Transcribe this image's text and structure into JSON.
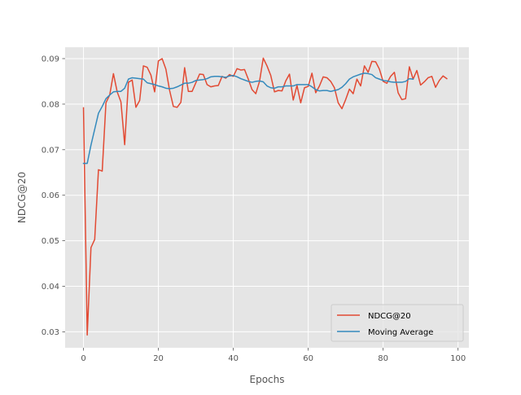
{
  "chart_data": {
    "type": "line",
    "title": "",
    "xlabel": "Epochs",
    "ylabel": "NDCG@20",
    "xlim": [
      -4.9,
      102.9
    ],
    "ylim": [
      0.0265,
      0.0925
    ],
    "xticks": [
      0,
      20,
      40,
      60,
      80,
      100
    ],
    "xtick_labels": [
      "0",
      "20",
      "40",
      "60",
      "80",
      "100"
    ],
    "yticks": [
      0.03,
      0.04,
      0.05,
      0.06,
      0.07,
      0.08,
      0.09
    ],
    "ytick_labels": [
      "0.03",
      "0.04",
      "0.05",
      "0.06",
      "0.07",
      "0.08",
      "0.09"
    ],
    "grid": true,
    "legend_position": "lower-right",
    "series": [
      {
        "name": "NDCG@20",
        "color": "#E24A33",
        "x": [
          0,
          1,
          2,
          3,
          4,
          5,
          6,
          7,
          8,
          9,
          10,
          11,
          12,
          13,
          14,
          15,
          16,
          17,
          18,
          19,
          20,
          21,
          22,
          23,
          24,
          25,
          26,
          27,
          28,
          29,
          30,
          31,
          32,
          33,
          34,
          35,
          36,
          37,
          38,
          39,
          40,
          41,
          42,
          43,
          44,
          45,
          46,
          47,
          48,
          49,
          50,
          51,
          52,
          53,
          54,
          55,
          56,
          57,
          58,
          59,
          60,
          61,
          62,
          63,
          64,
          65,
          66,
          67,
          68,
          69,
          70,
          71,
          72,
          73,
          74,
          75,
          76,
          77,
          78,
          79,
          80,
          81,
          82,
          83,
          84,
          85,
          86,
          87,
          88,
          89,
          90,
          91,
          92,
          93,
          94,
          95,
          96,
          97
        ],
        "values": [
          0.0792,
          0.0293,
          0.0485,
          0.0503,
          0.0656,
          0.0653,
          0.0803,
          0.082,
          0.0867,
          0.0827,
          0.0805,
          0.0711,
          0.0848,
          0.0853,
          0.0793,
          0.0808,
          0.0884,
          0.0881,
          0.0864,
          0.0827,
          0.0895,
          0.09,
          0.0877,
          0.083,
          0.0795,
          0.0793,
          0.0804,
          0.088,
          0.0828,
          0.0828,
          0.0847,
          0.0866,
          0.0865,
          0.0843,
          0.0838,
          0.084,
          0.0841,
          0.0861,
          0.0857,
          0.0865,
          0.0861,
          0.0878,
          0.0875,
          0.0876,
          0.0855,
          0.0832,
          0.0823,
          0.085,
          0.0901,
          0.0884,
          0.0863,
          0.0827,
          0.083,
          0.0829,
          0.0851,
          0.0866,
          0.0809,
          0.0841,
          0.0803,
          0.0836,
          0.0839,
          0.0868,
          0.0825,
          0.084,
          0.086,
          0.0858,
          0.085,
          0.0836,
          0.0803,
          0.079,
          0.081,
          0.0833,
          0.0823,
          0.0855,
          0.084,
          0.0884,
          0.087,
          0.0894,
          0.0893,
          0.0877,
          0.085,
          0.0846,
          0.0861,
          0.087,
          0.0825,
          0.081,
          0.0812,
          0.0882,
          0.0855,
          0.0874,
          0.0842,
          0.0849,
          0.0858,
          0.0861,
          0.0837,
          0.0852,
          0.0862,
          0.0856
        ]
      },
      {
        "name": "Moving Average",
        "color": "#348ABD",
        "x": [
          0,
          1,
          2,
          3,
          4,
          5,
          6,
          7,
          8,
          9,
          10,
          11,
          12,
          13,
          14,
          15,
          16,
          17,
          18,
          19,
          20,
          21,
          22,
          23,
          24,
          25,
          26,
          27,
          28,
          29,
          30,
          31,
          32,
          33,
          34,
          35,
          36,
          37,
          38,
          39,
          40,
          41,
          42,
          43,
          44,
          45,
          46,
          47,
          48,
          49,
          50,
          51,
          52,
          53,
          54,
          55,
          56,
          57,
          58,
          59,
          60,
          61,
          62,
          63,
          64,
          65,
          66,
          67,
          68,
          69,
          70,
          71,
          72,
          73,
          74,
          75,
          76,
          77,
          78,
          79,
          80,
          81,
          82,
          83,
          84,
          85,
          86,
          87,
          88
        ],
        "values": [
          0.067,
          0.067,
          0.071,
          0.0745,
          0.078,
          0.0795,
          0.0812,
          0.082,
          0.0827,
          0.0828,
          0.0828,
          0.0835,
          0.0855,
          0.0858,
          0.0857,
          0.0856,
          0.0855,
          0.0847,
          0.0845,
          0.0843,
          0.084,
          0.0838,
          0.0835,
          0.0834,
          0.0835,
          0.0838,
          0.0842,
          0.0846,
          0.0846,
          0.0848,
          0.0852,
          0.0853,
          0.0854,
          0.0856,
          0.086,
          0.0861,
          0.0861,
          0.086,
          0.0859,
          0.0862,
          0.0863,
          0.086,
          0.0856,
          0.0853,
          0.085,
          0.0848,
          0.085,
          0.0851,
          0.0849,
          0.084,
          0.0836,
          0.0835,
          0.0838,
          0.0838,
          0.084,
          0.084,
          0.084,
          0.0843,
          0.0843,
          0.0843,
          0.0843,
          0.0838,
          0.0832,
          0.0829,
          0.083,
          0.083,
          0.0828,
          0.083,
          0.0832,
          0.0837,
          0.0845,
          0.0855,
          0.086,
          0.0863,
          0.0866,
          0.0868,
          0.0867,
          0.0865,
          0.0858,
          0.0855,
          0.0852,
          0.0851,
          0.0849,
          0.0848,
          0.0848,
          0.0848,
          0.085,
          0.0856,
          0.0855
        ]
      }
    ]
  }
}
